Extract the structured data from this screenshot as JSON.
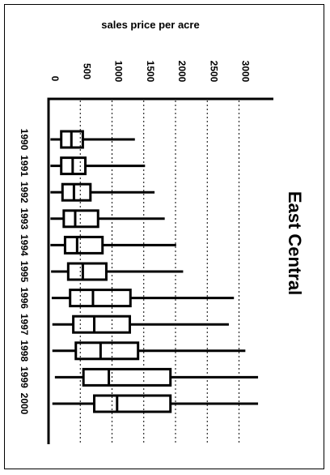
{
  "chart_data": {
    "type": "boxplot",
    "title": "East Central",
    "ylabel": "sales price per acre",
    "xlabel": "",
    "ylim": [
      0,
      3300
    ],
    "y_ticks": [
      0,
      500,
      1000,
      1500,
      2000,
      2500,
      3000
    ],
    "y_tick_labels": [
      "0",
      "500",
      "1000",
      "1500",
      "2000",
      "2500",
      "3000"
    ],
    "grid": "dotted lines at each y tick",
    "categories": [
      "1990",
      "1991",
      "1992",
      "1993",
      "1994",
      "1995",
      "1996",
      "1997",
      "1998",
      "1999",
      "2000"
    ],
    "boxes": [
      {
        "year": "1990",
        "whisker_low": 30,
        "q1": 200,
        "median": 360,
        "q3": 540,
        "whisker_high": 1360
      },
      {
        "year": "1991",
        "whisker_low": 30,
        "q1": 200,
        "median": 380,
        "q3": 580,
        "whisker_high": 1520
      },
      {
        "year": "1992",
        "whisker_low": 30,
        "q1": 220,
        "median": 400,
        "q3": 660,
        "whisker_high": 1670
      },
      {
        "year": "1993",
        "whisker_low": 30,
        "q1": 240,
        "median": 420,
        "q3": 780,
        "whisker_high": 1830
      },
      {
        "year": "1994",
        "whisker_low": 30,
        "q1": 260,
        "median": 450,
        "q3": 850,
        "whisker_high": 2010
      },
      {
        "year": "1995",
        "whisker_low": 40,
        "q1": 310,
        "median": 540,
        "q3": 910,
        "whisker_high": 2120
      },
      {
        "year": "1996",
        "whisker_low": 50,
        "q1": 340,
        "median": 700,
        "q3": 1290,
        "whisker_high": 2920
      },
      {
        "year": "1997",
        "whisker_low": 60,
        "q1": 390,
        "median": 720,
        "q3": 1280,
        "whisker_high": 2840
      },
      {
        "year": "1998",
        "whisker_low": 60,
        "q1": 430,
        "median": 820,
        "q3": 1410,
        "whisker_high": 3100
      },
      {
        "year": "1999",
        "whisker_low": 100,
        "q1": 550,
        "median": 950,
        "q3": 1920,
        "whisker_high": 3300
      },
      {
        "year": "2000",
        "whisker_low": 60,
        "q1": 720,
        "median": 1080,
        "q3": 1920,
        "whisker_high": 3300
      }
    ]
  }
}
